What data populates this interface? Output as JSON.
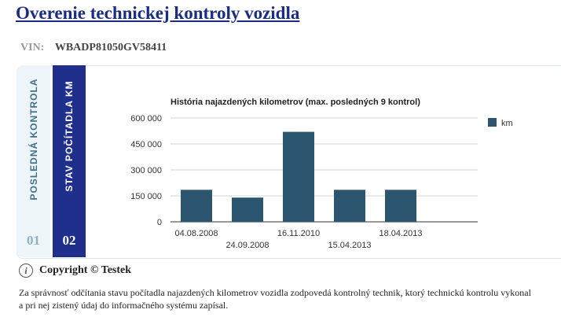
{
  "page": {
    "title": "Overenie technickej kontroly vozidla",
    "vin_label": "VIN:",
    "vin_value": "WBADP81050GV58411"
  },
  "tabs": [
    {
      "label": "POSLEDNÁ KONTROLA",
      "number": "01",
      "active": false
    },
    {
      "label": "STAV POČÍTADLA KM",
      "number": "02",
      "active": true
    }
  ],
  "chart_data": {
    "type": "bar",
    "title": "História najazdených kilometrov (max. posledných 9 kontrol)",
    "categories": [
      "04.08.2008",
      "24.09.2008",
      "16.11.2010",
      "15.04.2013",
      "18.04.2013"
    ],
    "series": [
      {
        "name": "km",
        "values": [
          185000,
          140000,
          520000,
          185000,
          185000
        ]
      }
    ],
    "yticks": [
      "0",
      "150 000",
      "300 000",
      "450 000",
      "600 000"
    ],
    "ylim": [
      0,
      600000
    ],
    "grid": true,
    "legend": "right",
    "bar_color": "#2c5570"
  },
  "footer": {
    "copyright": "Copyright © Testek",
    "note": "Za správnosť odčítania stavu počítadla najazdených kilometrov vozidla zodpovedá kontrolný technik, ktorý technickú kontrolu vykonal a pri nej zistený údaj do informačného systému zapísal."
  }
}
